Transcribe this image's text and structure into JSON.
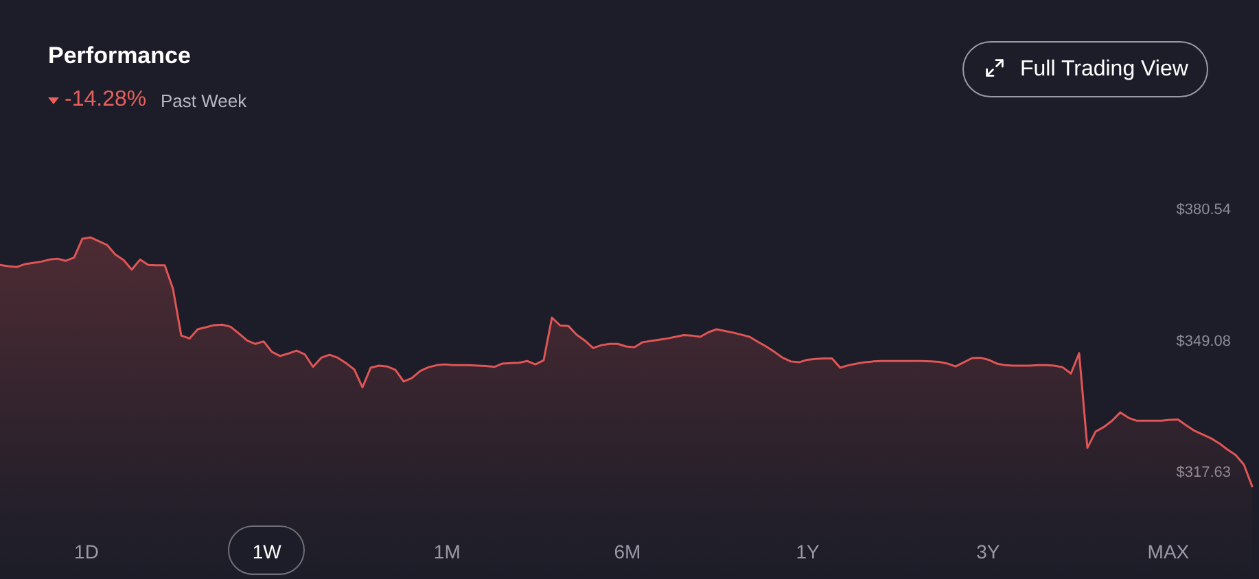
{
  "chart_data": {
    "type": "area",
    "title": "Performance",
    "subtitle": "-14.28%",
    "annotations": [
      "Past Week",
      "Full Trading View",
      "1D",
      "1W",
      "1M",
      "6M",
      "1Y",
      "3Y",
      "MAX"
    ],
    "categories": [
      null,
      null,
      null,
      null,
      null,
      null,
      null,
      null,
      null,
      null,
      null,
      null,
      null,
      null,
      null,
      null,
      null,
      null,
      null,
      null,
      null,
      null,
      null,
      null,
      null,
      null,
      null,
      null,
      null,
      null,
      null,
      null,
      null,
      null,
      null,
      null,
      null,
      null,
      null,
      null,
      null,
      null,
      null,
      null,
      null,
      null,
      null,
      null,
      null,
      null,
      null,
      null,
      null,
      null,
      null,
      null,
      null,
      null,
      null,
      null,
      null,
      null,
      null,
      null,
      null,
      null,
      null,
      null,
      null,
      null,
      null,
      null,
      null,
      null,
      null,
      null,
      null,
      null,
      null,
      null,
      null,
      null,
      null,
      null,
      null,
      null,
      null,
      null,
      null,
      null,
      null,
      null,
      null,
      null,
      null,
      null,
      null,
      null,
      null,
      null,
      null,
      null,
      null,
      null,
      null,
      null,
      null,
      null,
      null,
      null,
      null,
      null,
      null,
      null,
      null,
      null,
      null,
      null,
      null,
      null,
      null,
      null,
      null,
      null,
      null,
      null,
      null,
      null,
      null,
      null,
      null,
      null,
      null,
      null,
      null,
      null,
      null,
      null,
      null,
      null,
      null,
      null,
      null,
      null,
      null,
      null,
      null,
      null,
      null,
      null,
      null,
      null,
      null
    ],
    "values": [
      367.2,
      366.9,
      366.7,
      367.4,
      367.7,
      368.0,
      368.5,
      368.7,
      368.2,
      369.0,
      373.5,
      373.8,
      372.9,
      372.0,
      369.7,
      368.4,
      366.1,
      368.5,
      367.2,
      367.1,
      367.1,
      361.5,
      350.3,
      349.6,
      351.8,
      352.3,
      352.8,
      352.9,
      352.4,
      350.8,
      349.1,
      348.3,
      348.9,
      346.4,
      345.4,
      346.0,
      346.7,
      345.8,
      342.8,
      345.0,
      345.7,
      345.0,
      343.7,
      342.2,
      337.9,
      342.6,
      343.1,
      342.9,
      342.1,
      339.3,
      340.1,
      341.8,
      342.7,
      343.2,
      343.4,
      343.2,
      343.2,
      343.2,
      343.1,
      343.0,
      342.8,
      343.6,
      343.7,
      343.8,
      344.2,
      343.4,
      344.4,
      354.6,
      352.7,
      352.6,
      350.5,
      349.1,
      347.3,
      348.0,
      348.3,
      348.3,
      347.7,
      347.5,
      348.7,
      349.0,
      349.3,
      349.6,
      350.0,
      350.4,
      350.3,
      350.0,
      351.1,
      351.8,
      351.4,
      351.0,
      350.5,
      350.0,
      348.8,
      347.7,
      346.4,
      345.0,
      344.1,
      343.9,
      344.5,
      344.7,
      344.8,
      344.8,
      342.6,
      343.2,
      343.6,
      343.9,
      344.1,
      344.2,
      344.2,
      344.2,
      344.2,
      344.2,
      344.2,
      344.1,
      344.0,
      343.6,
      342.9,
      343.9,
      344.9,
      345.0,
      344.5,
      343.6,
      343.2,
      343.1,
      343.1,
      343.1,
      343.2,
      343.2,
      343.1,
      342.7,
      341.2,
      346.1,
      323.4,
      327.3,
      328.4,
      329.9,
      331.9,
      330.6,
      329.9,
      329.9,
      329.9,
      329.9,
      330.1,
      330.2,
      328.8,
      327.5,
      326.6,
      325.7,
      324.5,
      323.0,
      321.7,
      319.4,
      314.2
    ],
    "color": "#e05555",
    "ylim": [
      292,
      430
    ],
    "yticks": [
      {
        "value": 380.54,
        "label": "$380.54"
      },
      {
        "value": 349.08,
        "label": "$349.08"
      },
      {
        "value": 317.63,
        "label": "$317.63"
      }
    ],
    "tick_labels": "y"
  }
}
